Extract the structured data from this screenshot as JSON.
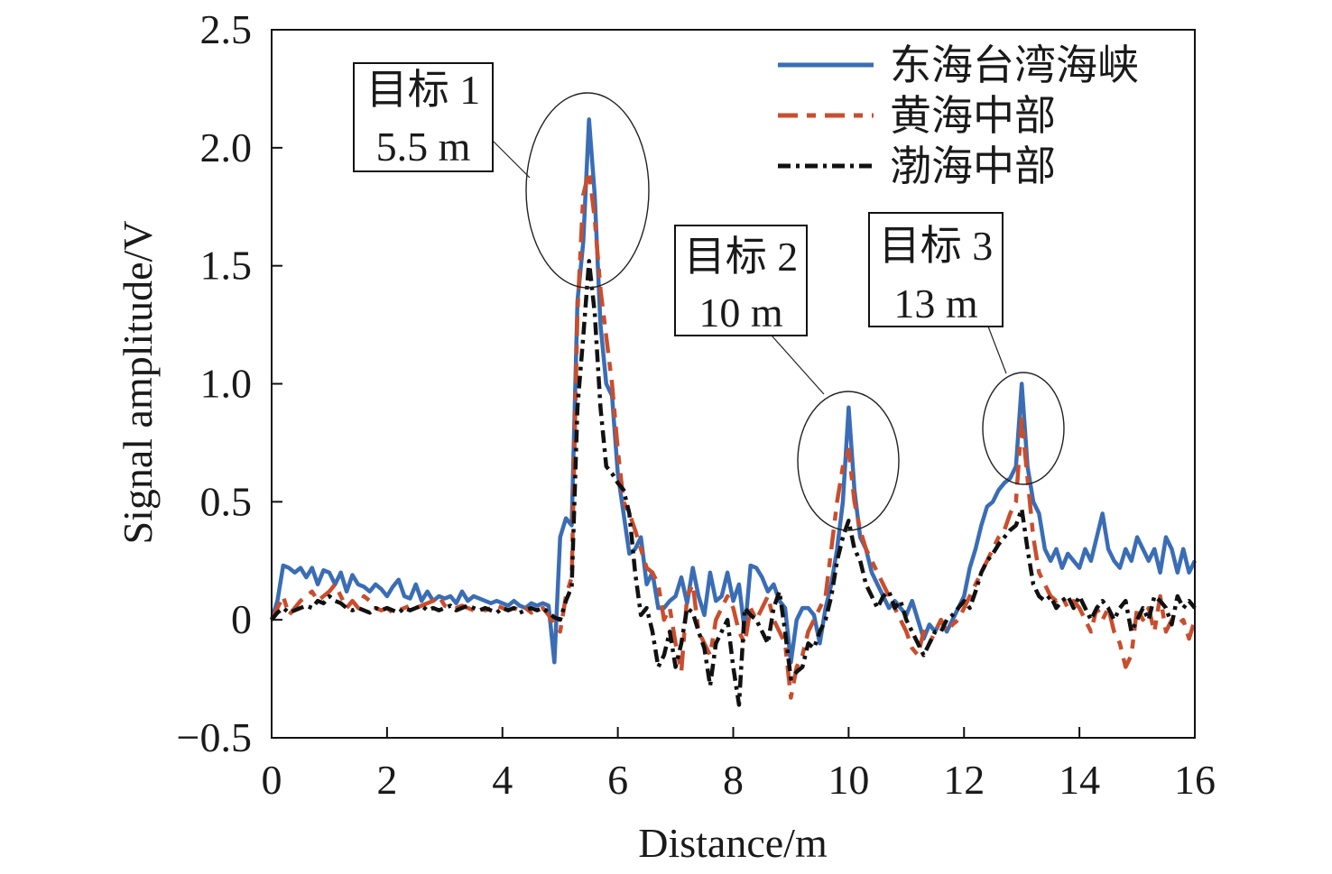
{
  "chart_data": {
    "type": "line",
    "title": "",
    "xlabel": "Distance/m",
    "ylabel": "Signal amplitude/V",
    "xlim": [
      0,
      16
    ],
    "ylim": [
      -0.5,
      2.5
    ],
    "x_ticks": [
      0,
      2,
      4,
      6,
      8,
      10,
      12,
      14,
      16
    ],
    "x_tick_labels": [
      "0",
      "2",
      "4",
      "6",
      "8",
      "10",
      "12",
      "14",
      "16"
    ],
    "y_ticks": [
      -0.5,
      0,
      0.5,
      1.0,
      1.5,
      2.0,
      2.5
    ],
    "y_tick_labels": [
      "−0.5",
      "0",
      "0.5",
      "1.0",
      "1.5",
      "2.0",
      "2.5"
    ],
    "grid": false,
    "legend_position": "top-right",
    "series": [
      {
        "name": "东海台湾海峡",
        "color": "#3a6db5",
        "dash": "solid",
        "x": [
          0.0,
          0.1,
          0.2,
          0.3,
          0.4,
          0.5,
          0.6,
          0.7,
          0.8,
          0.9,
          1.0,
          1.1,
          1.2,
          1.3,
          1.4,
          1.5,
          1.6,
          1.7,
          1.8,
          1.9,
          2.0,
          2.1,
          2.2,
          2.3,
          2.4,
          2.5,
          2.6,
          2.7,
          2.8,
          2.9,
          3.0,
          3.1,
          3.2,
          3.3,
          3.4,
          3.5,
          3.6,
          3.7,
          3.8,
          3.9,
          4.0,
          4.1,
          4.2,
          4.3,
          4.4,
          4.5,
          4.6,
          4.7,
          4.8,
          4.9,
          5.0,
          5.1,
          5.2,
          5.3,
          5.4,
          5.5,
          5.6,
          5.7,
          5.8,
          5.9,
          6.0,
          6.1,
          6.2,
          6.3,
          6.4,
          6.5,
          6.6,
          6.7,
          6.8,
          6.9,
          7.0,
          7.1,
          7.2,
          7.3,
          7.4,
          7.5,
          7.6,
          7.7,
          7.8,
          7.9,
          8.0,
          8.1,
          8.2,
          8.3,
          8.4,
          8.5,
          8.6,
          8.7,
          8.8,
          8.9,
          9.0,
          9.1,
          9.2,
          9.3,
          9.4,
          9.5,
          9.6,
          9.7,
          9.8,
          9.9,
          10.0,
          10.1,
          10.2,
          10.3,
          10.4,
          10.5,
          10.6,
          10.7,
          10.8,
          10.9,
          11.0,
          11.1,
          11.2,
          11.3,
          11.4,
          11.5,
          11.6,
          11.7,
          11.8,
          11.9,
          12.0,
          12.1,
          12.2,
          12.3,
          12.4,
          12.5,
          12.6,
          12.7,
          12.8,
          12.9,
          13.0,
          13.1,
          13.2,
          13.3,
          13.4,
          13.5,
          13.6,
          13.7,
          13.8,
          13.9,
          14.0,
          14.1,
          14.2,
          14.3,
          14.4,
          14.5,
          14.6,
          14.7,
          14.8,
          14.9,
          15.0,
          15.1,
          15.2,
          15.3,
          15.4,
          15.5,
          15.6,
          15.7,
          15.8,
          15.9,
          16.0
        ],
        "y": [
          0.0,
          0.08,
          0.23,
          0.22,
          0.2,
          0.22,
          0.18,
          0.22,
          0.15,
          0.21,
          0.2,
          0.15,
          0.2,
          0.12,
          0.19,
          0.15,
          0.14,
          0.12,
          0.15,
          0.13,
          0.1,
          0.14,
          0.17,
          0.1,
          0.09,
          0.15,
          0.08,
          0.12,
          0.08,
          0.1,
          0.09,
          0.1,
          0.07,
          0.12,
          0.08,
          0.1,
          0.09,
          0.08,
          0.07,
          0.08,
          0.07,
          0.06,
          0.08,
          0.06,
          0.05,
          0.07,
          0.06,
          0.07,
          0.06,
          -0.18,
          0.35,
          0.43,
          0.4,
          1.35,
          1.6,
          2.12,
          1.8,
          1.25,
          1.0,
          0.95,
          0.62,
          0.45,
          0.28,
          0.3,
          0.35,
          0.15,
          0.2,
          0.05,
          0.05,
          0.08,
          0.1,
          0.18,
          0.07,
          0.22,
          0.1,
          0.02,
          0.2,
          0.08,
          0.1,
          0.2,
          0.08,
          0.15,
          -0.05,
          0.23,
          0.22,
          0.18,
          0.12,
          0.15,
          0.08,
          0.05,
          -0.18,
          0.0,
          0.05,
          0.05,
          0.02,
          -0.1,
          0.05,
          0.15,
          0.3,
          0.5,
          0.9,
          0.55,
          0.35,
          0.3,
          0.2,
          0.15,
          0.1,
          0.05,
          0.08,
          0.05,
          0.02,
          0.08,
          0.0,
          -0.08,
          -0.02,
          -0.05,
          0.0,
          -0.05,
          0.0,
          0.05,
          0.1,
          0.22,
          0.3,
          0.4,
          0.48,
          0.5,
          0.55,
          0.58,
          0.6,
          0.65,
          1.0,
          0.65,
          0.5,
          0.45,
          0.3,
          0.25,
          0.3,
          0.22,
          0.28,
          0.25,
          0.22,
          0.3,
          0.25,
          0.35,
          0.45,
          0.3,
          0.25,
          0.22,
          0.3,
          0.25,
          0.35,
          0.3,
          0.25,
          0.3,
          0.2,
          0.35,
          0.3,
          0.2,
          0.3,
          0.2,
          0.25
        ]
      },
      {
        "name": "黄海中部",
        "color": "#c94e2e",
        "dash": "dashed",
        "x": [
          0.0,
          0.1,
          0.2,
          0.3,
          0.4,
          0.5,
          0.6,
          0.7,
          0.8,
          0.9,
          1.0,
          1.1,
          1.2,
          1.3,
          1.4,
          1.5,
          1.6,
          1.7,
          1.8,
          1.9,
          2.0,
          2.1,
          2.2,
          2.3,
          2.4,
          2.5,
          2.6,
          2.7,
          2.8,
          2.9,
          3.0,
          3.1,
          3.2,
          3.3,
          3.4,
          3.5,
          3.6,
          3.7,
          3.8,
          3.9,
          4.0,
          4.1,
          4.2,
          4.3,
          4.4,
          4.5,
          4.6,
          4.7,
          4.8,
          4.9,
          5.0,
          5.1,
          5.2,
          5.3,
          5.4,
          5.5,
          5.6,
          5.7,
          5.8,
          5.9,
          6.0,
          6.1,
          6.2,
          6.3,
          6.4,
          6.5,
          6.6,
          6.7,
          6.8,
          6.9,
          7.0,
          7.1,
          7.2,
          7.3,
          7.4,
          7.5,
          7.6,
          7.7,
          7.8,
          7.9,
          8.0,
          8.1,
          8.2,
          8.3,
          8.4,
          8.5,
          8.6,
          8.7,
          8.8,
          8.9,
          9.0,
          9.1,
          9.2,
          9.3,
          9.4,
          9.5,
          9.6,
          9.7,
          9.8,
          9.9,
          10.0,
          10.1,
          10.2,
          10.3,
          10.4,
          10.5,
          10.6,
          10.7,
          10.8,
          10.9,
          11.0,
          11.1,
          11.2,
          11.3,
          11.4,
          11.5,
          11.6,
          11.7,
          11.8,
          11.9,
          12.0,
          12.1,
          12.2,
          12.3,
          12.4,
          12.5,
          12.6,
          12.7,
          12.8,
          12.9,
          13.0,
          13.1,
          13.2,
          13.3,
          13.4,
          13.5,
          13.6,
          13.7,
          13.8,
          13.9,
          14.0,
          14.1,
          14.2,
          14.3,
          14.4,
          14.5,
          14.6,
          14.7,
          14.8,
          14.9,
          15.0,
          15.1,
          15.2,
          15.3,
          15.4,
          15.5,
          15.6,
          15.7,
          15.8,
          15.9,
          16.0
        ],
        "y": [
          0.0,
          0.05,
          0.1,
          0.02,
          0.05,
          0.08,
          0.1,
          0.12,
          0.08,
          0.1,
          0.12,
          0.15,
          0.1,
          0.05,
          0.08,
          0.05,
          0.1,
          0.08,
          0.05,
          0.04,
          0.05,
          0.03,
          0.04,
          0.05,
          0.06,
          0.05,
          0.06,
          0.07,
          0.08,
          0.1,
          0.06,
          0.05,
          0.05,
          0.06,
          0.05,
          0.04,
          0.05,
          0.04,
          0.05,
          0.06,
          0.05,
          0.04,
          0.05,
          0.04,
          0.05,
          0.03,
          0.04,
          0.05,
          0.02,
          -0.02,
          -0.05,
          0.1,
          0.18,
          1.3,
          1.8,
          1.9,
          1.7,
          1.4,
          1.2,
          1.0,
          0.72,
          0.5,
          0.45,
          0.38,
          0.3,
          0.22,
          0.2,
          0.15,
          0.0,
          0.05,
          -0.1,
          -0.22,
          0.1,
          0.15,
          -0.05,
          -0.1,
          -0.15,
          0.0,
          0.05,
          0.1,
          0.05,
          -0.05,
          -0.1,
          0.05,
          0.0,
          0.05,
          0.1,
          0.0,
          -0.05,
          -0.1,
          -0.33,
          -0.2,
          -0.15,
          -0.05,
          0.0,
          0.05,
          0.1,
          0.3,
          0.5,
          0.65,
          0.72,
          0.5,
          0.38,
          0.3,
          0.25,
          0.2,
          0.15,
          0.1,
          0.05,
          0.0,
          -0.05,
          -0.12,
          -0.15,
          -0.05,
          -0.1,
          -0.05,
          0.0,
          -0.05,
          -0.02,
          0.0,
          0.05,
          0.1,
          0.15,
          0.2,
          0.25,
          0.3,
          0.35,
          0.38,
          0.45,
          0.5,
          0.85,
          0.6,
          0.35,
          0.2,
          0.15,
          0.1,
          0.08,
          0.1,
          0.05,
          0.08,
          0.05,
          0.0,
          -0.05,
          0.05,
          0.0,
          0.05,
          -0.05,
          -0.1,
          -0.2,
          -0.15,
          0.05,
          0.0,
          0.05,
          -0.05,
          0.1,
          -0.05,
          0.0,
          -0.02,
          0.0,
          -0.08,
          0.0
        ]
      },
      {
        "name": "渤海中部",
        "color": "#111111",
        "dash": "dashdot",
        "x": [
          0.0,
          0.1,
          0.2,
          0.3,
          0.4,
          0.5,
          0.6,
          0.7,
          0.8,
          0.9,
          1.0,
          1.1,
          1.2,
          1.3,
          1.4,
          1.5,
          1.6,
          1.7,
          1.8,
          1.9,
          2.0,
          2.1,
          2.2,
          2.3,
          2.4,
          2.5,
          2.6,
          2.7,
          2.8,
          2.9,
          3.0,
          3.1,
          3.2,
          3.3,
          3.4,
          3.5,
          3.6,
          3.7,
          3.8,
          3.9,
          4.0,
          4.1,
          4.2,
          4.3,
          4.4,
          4.5,
          4.6,
          4.7,
          4.8,
          4.9,
          5.0,
          5.1,
          5.2,
          5.3,
          5.4,
          5.5,
          5.6,
          5.7,
          5.8,
          5.9,
          6.0,
          6.1,
          6.2,
          6.3,
          6.4,
          6.5,
          6.6,
          6.7,
          6.8,
          6.9,
          7.0,
          7.1,
          7.2,
          7.3,
          7.4,
          7.5,
          7.6,
          7.7,
          7.8,
          7.9,
          8.0,
          8.1,
          8.2,
          8.3,
          8.4,
          8.5,
          8.6,
          8.7,
          8.8,
          8.9,
          9.0,
          9.1,
          9.2,
          9.3,
          9.4,
          9.5,
          9.6,
          9.7,
          9.8,
          9.9,
          10.0,
          10.1,
          10.2,
          10.3,
          10.4,
          10.5,
          10.6,
          10.7,
          10.8,
          10.9,
          11.0,
          11.1,
          11.2,
          11.3,
          11.4,
          11.5,
          11.6,
          11.7,
          11.8,
          11.9,
          12.0,
          12.1,
          12.2,
          12.3,
          12.4,
          12.5,
          12.6,
          12.7,
          12.8,
          12.9,
          13.0,
          13.1,
          13.2,
          13.3,
          13.4,
          13.5,
          13.6,
          13.7,
          13.8,
          13.9,
          14.0,
          14.1,
          14.2,
          14.3,
          14.4,
          14.5,
          14.6,
          14.7,
          14.8,
          14.9,
          15.0,
          15.1,
          15.2,
          15.3,
          15.4,
          15.5,
          15.6,
          15.7,
          15.8,
          15.9,
          16.0
        ],
        "y": [
          0.0,
          0.03,
          0.05,
          0.03,
          0.04,
          0.05,
          0.06,
          0.05,
          0.08,
          0.07,
          0.1,
          0.08,
          0.07,
          0.05,
          0.04,
          0.05,
          0.04,
          0.03,
          0.05,
          0.04,
          0.05,
          0.04,
          0.03,
          0.05,
          0.04,
          0.05,
          0.06,
          0.04,
          0.05,
          0.04,
          0.05,
          0.06,
          0.04,
          0.05,
          0.06,
          0.05,
          0.04,
          0.05,
          0.04,
          0.03,
          0.05,
          0.04,
          0.05,
          0.03,
          0.04,
          0.05,
          0.04,
          0.05,
          0.03,
          0.01,
          0.0,
          0.08,
          0.14,
          0.9,
          1.2,
          1.52,
          1.3,
          0.9,
          0.65,
          0.62,
          0.58,
          0.55,
          0.45,
          0.2,
          0.02,
          0.05,
          -0.05,
          -0.2,
          -0.15,
          -0.05,
          -0.2,
          -0.1,
          0.05,
          0.03,
          -0.05,
          -0.12,
          -0.28,
          -0.1,
          -0.05,
          0.0,
          -0.2,
          -0.36,
          0.05,
          0.02,
          0.0,
          -0.05,
          -0.1,
          0.05,
          0.12,
          -0.05,
          -0.25,
          -0.22,
          -0.2,
          -0.1,
          -0.12,
          -0.05,
          0.0,
          0.1,
          0.25,
          0.35,
          0.42,
          0.3,
          0.25,
          0.15,
          0.1,
          0.05,
          0.1,
          0.12,
          0.05,
          0.08,
          0.0,
          -0.05,
          -0.1,
          -0.15,
          -0.1,
          -0.05,
          -0.05,
          0.0,
          0.02,
          0.05,
          0.08,
          0.05,
          0.12,
          0.2,
          0.25,
          0.28,
          0.32,
          0.35,
          0.38,
          0.4,
          0.47,
          0.3,
          0.15,
          0.1,
          0.08,
          0.1,
          0.05,
          0.08,
          0.1,
          0.05,
          0.1,
          0.05,
          0.0,
          0.05,
          0.08,
          0.05,
          0.0,
          0.05,
          0.08,
          -0.05,
          0.0,
          0.05,
          0.0,
          0.1,
          0.08,
          0.05,
          -0.02,
          0.1,
          0.05,
          0.08,
          0.05
        ]
      }
    ],
    "annotations": [
      {
        "name": "target1",
        "lines": [
          "目标 1",
          "5.5 m"
        ],
        "peak_x": 5.5
      },
      {
        "name": "target2",
        "lines": [
          "目标 2",
          "10 m"
        ],
        "peak_x": 10
      },
      {
        "name": "target3",
        "lines": [
          "目标 3",
          "13 m"
        ],
        "peak_x": 13
      }
    ]
  }
}
